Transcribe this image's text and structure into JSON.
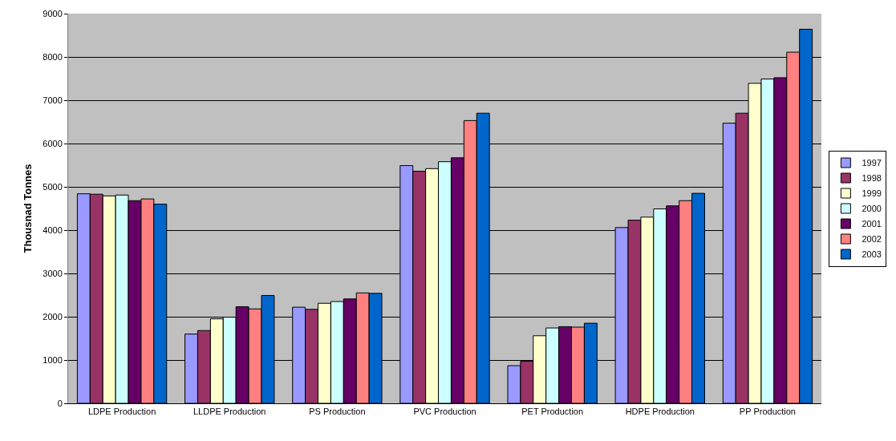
{
  "chart_data": {
    "type": "bar",
    "ylabel": "Thousnad Tonnes",
    "categories": [
      "LDPE Production",
      "LLDPE Production",
      "PS Production",
      "PVC Production",
      "PET Production",
      "HDPE Production",
      "PP Production"
    ],
    "series": [
      {
        "name": "1997",
        "color": "#9999ff",
        "values": [
          4840,
          1600,
          2220,
          5490,
          870,
          4060,
          6470
        ]
      },
      {
        "name": "1998",
        "color": "#993366",
        "values": [
          4830,
          1680,
          2170,
          5360,
          970,
          4230,
          6700
        ]
      },
      {
        "name": "1999",
        "color": "#ffffcc",
        "values": [
          4790,
          1950,
          2310,
          5420,
          1560,
          4300,
          7390
        ]
      },
      {
        "name": "2000",
        "color": "#ccffff",
        "values": [
          4810,
          1990,
          2350,
          5580,
          1740,
          4490,
          7490
        ]
      },
      {
        "name": "2001",
        "color": "#660066",
        "values": [
          4680,
          2230,
          2410,
          5670,
          1770,
          4560,
          7520
        ]
      },
      {
        "name": "2002",
        "color": "#ff8080",
        "values": [
          4720,
          2180,
          2550,
          6530,
          1760,
          4680,
          8110
        ]
      },
      {
        "name": "2003",
        "color": "#0066cc",
        "values": [
          4600,
          2490,
          2540,
          6700,
          1850,
          4850,
          8640
        ]
      }
    ],
    "ylim": [
      0,
      9000
    ],
    "yticks": [
      0,
      1000,
      2000,
      3000,
      4000,
      5000,
      6000,
      7000,
      8000,
      9000
    ],
    "grid": "y",
    "legend": "right"
  }
}
